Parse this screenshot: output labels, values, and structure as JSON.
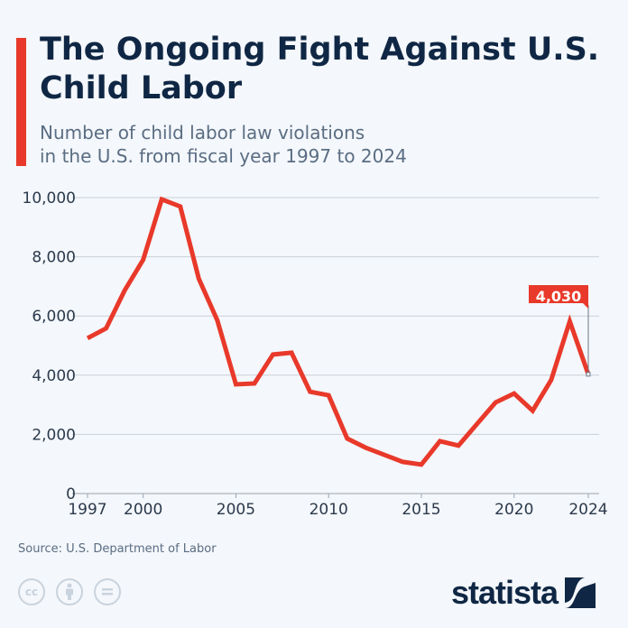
{
  "header": {
    "title": "The Ongoing Fight Against U.S. Child Labor",
    "subtitle_line1": "Number of child labor law violations",
    "subtitle_line2": "in the U.S. from fiscal year 1997 to 2024"
  },
  "footer": {
    "source": "Source: U.S. Department of Labor",
    "license_icons": [
      "cc-icon",
      "attribution-icon",
      "no-derivatives-icon"
    ],
    "logo": "statista"
  },
  "colors": {
    "accent": "#e8392a",
    "title": "#0f2744",
    "grid": "#c9d0d8",
    "background": "#f4f7fb"
  },
  "chart_data": {
    "type": "line",
    "x": [
      1997,
      1998,
      1999,
      2000,
      2001,
      2002,
      2003,
      2004,
      2005,
      2006,
      2007,
      2008,
      2009,
      2010,
      2011,
      2012,
      2013,
      2014,
      2015,
      2016,
      2017,
      2018,
      2019,
      2020,
      2021,
      2022,
      2023,
      2024
    ],
    "values": [
      5250,
      5580,
      6860,
      7900,
      9940,
      9700,
      7260,
      5850,
      3690,
      3720,
      4700,
      4760,
      3440,
      3320,
      1860,
      1550,
      1310,
      1070,
      980,
      1770,
      1620,
      2350,
      3080,
      3380,
      2800,
      3840,
      5820,
      4030
    ],
    "xlim": [
      1997,
      2024
    ],
    "ylim": [
      0,
      10000
    ],
    "x_ticks": [
      "1997",
      "2000",
      "2005",
      "2010",
      "2015",
      "2020",
      "2024"
    ],
    "x_tick_values": [
      1997,
      2000,
      2005,
      2010,
      2015,
      2020,
      2024
    ],
    "y_ticks": [
      "0",
      "2,000",
      "4,000",
      "6,000",
      "8,000",
      "10,000"
    ],
    "y_tick_values": [
      0,
      2000,
      4000,
      6000,
      8000,
      10000
    ],
    "annotation": {
      "label": "4,030",
      "x": 2024
    },
    "grid": true,
    "xlabel": "",
    "ylabel": ""
  }
}
